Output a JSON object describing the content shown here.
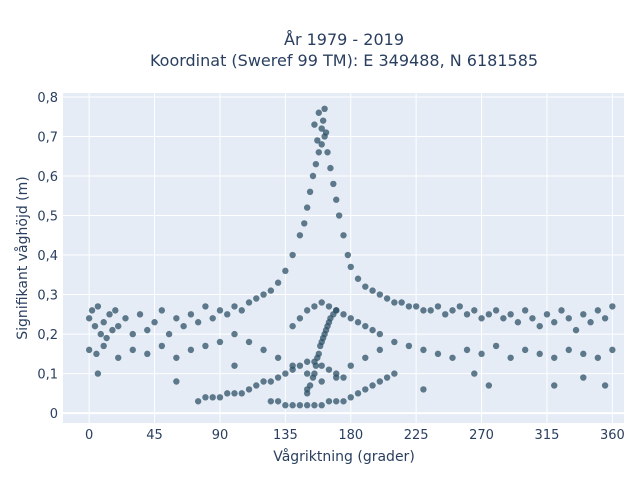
{
  "chart_data": {
    "type": "scatter",
    "title_line1": "År 1979 - 2019",
    "title_line2": "Koordinat (Sweref 99 TM): E 349488, N 6181585",
    "xlabel": "Vågriktning (grader)",
    "ylabel": "Signifikant våghöjd (m)",
    "xlim": [
      -18,
      368
    ],
    "ylim": [
      -0.025,
      0.81
    ],
    "x_ticks": [
      0,
      45,
      90,
      135,
      180,
      225,
      270,
      315,
      360
    ],
    "x_tick_labels": [
      "0",
      "45",
      "90",
      "135",
      "180",
      "225",
      "270",
      "315",
      "360"
    ],
    "y_ticks": [
      0,
      0.1,
      0.2,
      0.3,
      0.4,
      0.5,
      0.6,
      0.7,
      0.8
    ],
    "y_tick_labels": [
      "0",
      "0,1",
      "0,2",
      "0,3",
      "0,4",
      "0,5",
      "0,6",
      "0,7",
      "0,8"
    ],
    "grid": true,
    "legend": "none",
    "series": [
      {
        "marker_color": "#2e5166",
        "x": [
          0,
          2,
          4,
          6,
          8,
          10,
          12,
          14,
          16,
          18,
          20,
          25,
          30,
          35,
          40,
          45,
          50,
          55,
          60,
          65,
          70,
          75,
          80,
          85,
          90,
          95,
          100,
          105,
          110,
          115,
          120,
          125,
          130,
          135,
          140,
          145,
          148,
          150,
          152,
          154,
          156,
          158,
          160,
          162,
          164,
          166,
          168,
          170,
          172,
          175,
          178,
          180,
          185,
          190,
          195,
          200,
          205,
          210,
          215,
          220,
          225,
          230,
          235,
          240,
          245,
          250,
          255,
          260,
          265,
          270,
          275,
          280,
          285,
          290,
          295,
          300,
          305,
          310,
          315,
          320,
          325,
          330,
          335,
          340,
          345,
          350,
          355,
          360,
          0,
          5,
          10,
          20,
          30,
          40,
          50,
          60,
          70,
          80,
          90,
          100,
          110,
          120,
          130,
          140,
          150,
          160,
          170,
          180,
          190,
          200,
          210,
          220,
          230,
          240,
          250,
          260,
          270,
          280,
          290,
          300,
          310,
          320,
          330,
          340,
          350,
          360,
          75,
          80,
          85,
          90,
          95,
          100,
          105,
          110,
          115,
          120,
          125,
          130,
          135,
          140,
          145,
          150,
          155,
          160,
          165,
          170,
          175,
          150,
          152,
          154,
          155,
          156,
          157,
          158,
          159,
          160,
          161,
          162,
          163,
          164,
          165,
          166,
          168,
          170,
          6,
          60,
          100,
          150,
          230,
          265,
          275,
          320,
          340,
          355,
          158,
          162,
          155,
          160,
          163,
          157,
          161,
          125,
          130,
          135,
          140,
          145,
          150,
          155,
          160,
          165,
          170,
          175,
          180,
          185,
          190,
          195,
          200,
          205,
          210,
          140,
          145,
          150,
          155,
          160,
          165,
          170,
          175,
          180,
          185,
          190,
          195,
          200
        ],
        "y": [
          0.24,
          0.26,
          0.22,
          0.27,
          0.2,
          0.23,
          0.19,
          0.25,
          0.21,
          0.26,
          0.22,
          0.24,
          0.2,
          0.25,
          0.21,
          0.23,
          0.26,
          0.2,
          0.24,
          0.22,
          0.25,
          0.23,
          0.27,
          0.24,
          0.26,
          0.25,
          0.27,
          0.26,
          0.28,
          0.29,
          0.3,
          0.31,
          0.33,
          0.36,
          0.4,
          0.45,
          0.48,
          0.52,
          0.56,
          0.6,
          0.63,
          0.66,
          0.68,
          0.7,
          0.66,
          0.62,
          0.58,
          0.54,
          0.5,
          0.45,
          0.4,
          0.37,
          0.34,
          0.32,
          0.31,
          0.3,
          0.29,
          0.28,
          0.28,
          0.27,
          0.27,
          0.26,
          0.26,
          0.27,
          0.25,
          0.26,
          0.27,
          0.25,
          0.26,
          0.24,
          0.25,
          0.26,
          0.24,
          0.25,
          0.23,
          0.26,
          0.24,
          0.22,
          0.25,
          0.23,
          0.26,
          0.24,
          0.21,
          0.25,
          0.23,
          0.26,
          0.24,
          0.27,
          0.16,
          0.15,
          0.17,
          0.14,
          0.16,
          0.15,
          0.17,
          0.14,
          0.16,
          0.17,
          0.18,
          0.2,
          0.18,
          0.16,
          0.14,
          0.12,
          0.1,
          0.08,
          0.09,
          0.12,
          0.14,
          0.16,
          0.18,
          0.17,
          0.16,
          0.15,
          0.14,
          0.16,
          0.15,
          0.17,
          0.14,
          0.16,
          0.15,
          0.14,
          0.16,
          0.15,
          0.14,
          0.16,
          0.03,
          0.04,
          0.04,
          0.04,
          0.05,
          0.05,
          0.05,
          0.06,
          0.07,
          0.08,
          0.08,
          0.09,
          0.1,
          0.11,
          0.12,
          0.13,
          0.13,
          0.12,
          0.11,
          0.1,
          0.09,
          0.05,
          0.07,
          0.09,
          0.1,
          0.12,
          0.14,
          0.15,
          0.17,
          0.18,
          0.19,
          0.2,
          0.21,
          0.22,
          0.23,
          0.24,
          0.25,
          0.26,
          0.1,
          0.08,
          0.12,
          0.06,
          0.06,
          0.1,
          0.07,
          0.07,
          0.09,
          0.07,
          0.76,
          0.77,
          0.73,
          0.72,
          0.71,
          0.69,
          0.74,
          0.03,
          0.03,
          0.02,
          0.02,
          0.02,
          0.02,
          0.02,
          0.02,
          0.03,
          0.03,
          0.03,
          0.04,
          0.05,
          0.06,
          0.07,
          0.08,
          0.09,
          0.1,
          0.22,
          0.24,
          0.26,
          0.27,
          0.28,
          0.27,
          0.26,
          0.25,
          0.24,
          0.23,
          0.22,
          0.21,
          0.2
        ]
      }
    ]
  }
}
